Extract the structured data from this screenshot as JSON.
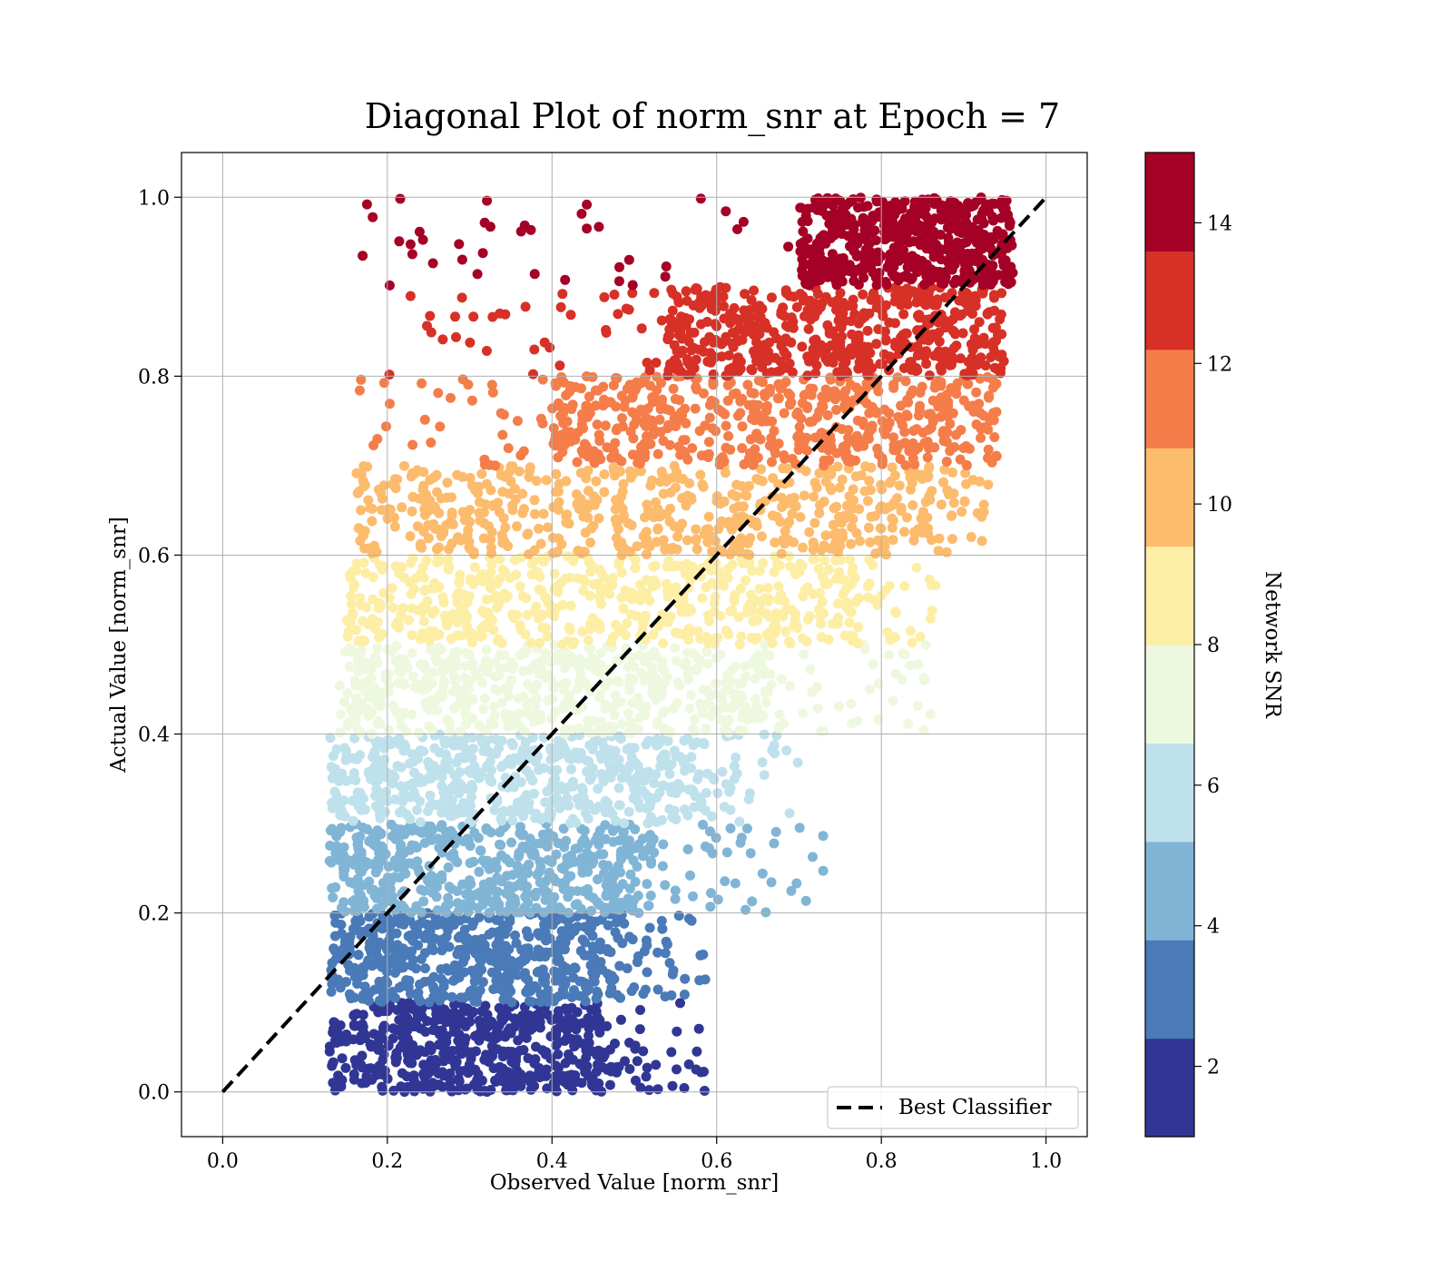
{
  "chart_data": {
    "type": "scatter",
    "title": "Diagonal Plot of norm_snr at Epoch = 7",
    "xlabel": "Observed Value [norm_snr]",
    "ylabel": "Actual Value [norm_snr]",
    "xlim": [
      -0.05,
      1.05
    ],
    "ylim": [
      -0.05,
      1.05
    ],
    "xticks": [
      "0.0",
      "0.2",
      "0.4",
      "0.6",
      "0.8",
      "1.0"
    ],
    "yticks": [
      "0.0",
      "0.2",
      "0.4",
      "0.6",
      "0.8",
      "1.0"
    ],
    "grid": true,
    "legend": {
      "location": "lower-right",
      "entries": [
        "Best Classifier"
      ]
    },
    "reference_line": {
      "name": "Best Classifier",
      "style": "dashed",
      "color": "#000000",
      "x": [
        0,
        1
      ],
      "y": [
        0,
        1
      ]
    },
    "colorbar": {
      "label": "Network SNR",
      "range": [
        1,
        15
      ],
      "ticks": [
        "2",
        "4",
        "6",
        "8",
        "10",
        "12",
        "14"
      ],
      "colors": [
        "#313695",
        "#4a7ab7",
        "#81b5d6",
        "#bfe1ec",
        "#eef8df",
        "#fdeea5",
        "#fcbb6d",
        "#f47d4a",
        "#d73027",
        "#a50026"
      ]
    },
    "series": [
      {
        "band_y": [
          0.0,
          0.1
        ],
        "color": "#313695",
        "x_range": [
          0.13,
          0.46
        ],
        "outlier_x_max": 0.59
      },
      {
        "band_y": [
          0.1,
          0.2
        ],
        "color": "#4a7ab7",
        "x_range": [
          0.13,
          0.48
        ],
        "outlier_x_max": 0.59
      },
      {
        "band_y": [
          0.2,
          0.3
        ],
        "color": "#81b5d6",
        "x_range": [
          0.13,
          0.52
        ],
        "outlier_x_max": 0.73
      },
      {
        "band_y": [
          0.3,
          0.4
        ],
        "color": "#bfe1ec",
        "x_range": [
          0.13,
          0.57
        ],
        "outlier_x_max": 0.7
      },
      {
        "band_y": [
          0.4,
          0.5
        ],
        "color": "#eef8df",
        "x_range": [
          0.14,
          0.66
        ],
        "outlier_x_max": 0.87
      },
      {
        "band_y": [
          0.5,
          0.6
        ],
        "color": "#fdeea5",
        "x_range": [
          0.15,
          0.76
        ],
        "outlier_x_max": 0.87
      },
      {
        "band_y": [
          0.6,
          0.7
        ],
        "color": "#fcbb6d",
        "x_range": [
          0.16,
          0.85
        ],
        "outlier_x_max": 0.93
      },
      {
        "band_y": [
          0.7,
          0.8
        ],
        "color": "#f47d4a",
        "x_range": [
          0.4,
          0.94
        ],
        "outlier_x_max": 0.95
      },
      {
        "band_y": [
          0.8,
          0.9
        ],
        "color": "#d73027",
        "x_range": [
          0.54,
          0.95
        ],
        "outlier_x_max": 0.96
      },
      {
        "band_y": [
          0.9,
          1.0
        ],
        "color": "#a50026",
        "x_range": [
          0.7,
          0.96
        ],
        "outlier_x_max": 0.98
      }
    ]
  }
}
